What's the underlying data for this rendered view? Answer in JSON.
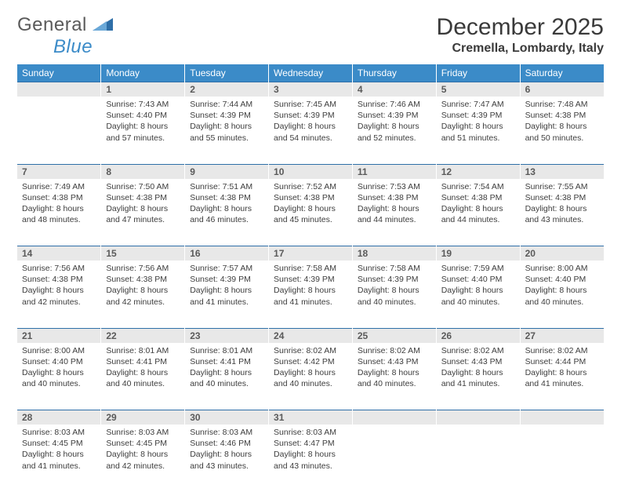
{
  "logo": {
    "word1": "General",
    "word2": "Blue"
  },
  "title": "December 2025",
  "location": "Cremella, Lombardy, Italy",
  "colors": {
    "header_bg": "#3b8bc8",
    "header_text": "#ffffff",
    "daynum_bg": "#e8e8e8",
    "daynum_border_top": "#2f6fa8",
    "body_text": "#3d3d3d",
    "logo_triangle": "#2f6fa8"
  },
  "typography": {
    "title_fontsize": 30,
    "location_fontsize": 16,
    "header_fontsize": 12,
    "daynum_fontsize": 12,
    "cell_fontsize": 10.5
  },
  "weekdays": [
    "Sunday",
    "Monday",
    "Tuesday",
    "Wednesday",
    "Thursday",
    "Friday",
    "Saturday"
  ],
  "weeks": [
    [
      null,
      {
        "n": "1",
        "sr": "Sunrise: 7:43 AM",
        "ss": "Sunset: 4:40 PM",
        "d1": "Daylight: 8 hours",
        "d2": "and 57 minutes."
      },
      {
        "n": "2",
        "sr": "Sunrise: 7:44 AM",
        "ss": "Sunset: 4:39 PM",
        "d1": "Daylight: 8 hours",
        "d2": "and 55 minutes."
      },
      {
        "n": "3",
        "sr": "Sunrise: 7:45 AM",
        "ss": "Sunset: 4:39 PM",
        "d1": "Daylight: 8 hours",
        "d2": "and 54 minutes."
      },
      {
        "n": "4",
        "sr": "Sunrise: 7:46 AM",
        "ss": "Sunset: 4:39 PM",
        "d1": "Daylight: 8 hours",
        "d2": "and 52 minutes."
      },
      {
        "n": "5",
        "sr": "Sunrise: 7:47 AM",
        "ss": "Sunset: 4:39 PM",
        "d1": "Daylight: 8 hours",
        "d2": "and 51 minutes."
      },
      {
        "n": "6",
        "sr": "Sunrise: 7:48 AM",
        "ss": "Sunset: 4:38 PM",
        "d1": "Daylight: 8 hours",
        "d2": "and 50 minutes."
      }
    ],
    [
      {
        "n": "7",
        "sr": "Sunrise: 7:49 AM",
        "ss": "Sunset: 4:38 PM",
        "d1": "Daylight: 8 hours",
        "d2": "and 48 minutes."
      },
      {
        "n": "8",
        "sr": "Sunrise: 7:50 AM",
        "ss": "Sunset: 4:38 PM",
        "d1": "Daylight: 8 hours",
        "d2": "and 47 minutes."
      },
      {
        "n": "9",
        "sr": "Sunrise: 7:51 AM",
        "ss": "Sunset: 4:38 PM",
        "d1": "Daylight: 8 hours",
        "d2": "and 46 minutes."
      },
      {
        "n": "10",
        "sr": "Sunrise: 7:52 AM",
        "ss": "Sunset: 4:38 PM",
        "d1": "Daylight: 8 hours",
        "d2": "and 45 minutes."
      },
      {
        "n": "11",
        "sr": "Sunrise: 7:53 AM",
        "ss": "Sunset: 4:38 PM",
        "d1": "Daylight: 8 hours",
        "d2": "and 44 minutes."
      },
      {
        "n": "12",
        "sr": "Sunrise: 7:54 AM",
        "ss": "Sunset: 4:38 PM",
        "d1": "Daylight: 8 hours",
        "d2": "and 44 minutes."
      },
      {
        "n": "13",
        "sr": "Sunrise: 7:55 AM",
        "ss": "Sunset: 4:38 PM",
        "d1": "Daylight: 8 hours",
        "d2": "and 43 minutes."
      }
    ],
    [
      {
        "n": "14",
        "sr": "Sunrise: 7:56 AM",
        "ss": "Sunset: 4:38 PM",
        "d1": "Daylight: 8 hours",
        "d2": "and 42 minutes."
      },
      {
        "n": "15",
        "sr": "Sunrise: 7:56 AM",
        "ss": "Sunset: 4:38 PM",
        "d1": "Daylight: 8 hours",
        "d2": "and 42 minutes."
      },
      {
        "n": "16",
        "sr": "Sunrise: 7:57 AM",
        "ss": "Sunset: 4:39 PM",
        "d1": "Daylight: 8 hours",
        "d2": "and 41 minutes."
      },
      {
        "n": "17",
        "sr": "Sunrise: 7:58 AM",
        "ss": "Sunset: 4:39 PM",
        "d1": "Daylight: 8 hours",
        "d2": "and 41 minutes."
      },
      {
        "n": "18",
        "sr": "Sunrise: 7:58 AM",
        "ss": "Sunset: 4:39 PM",
        "d1": "Daylight: 8 hours",
        "d2": "and 40 minutes."
      },
      {
        "n": "19",
        "sr": "Sunrise: 7:59 AM",
        "ss": "Sunset: 4:40 PM",
        "d1": "Daylight: 8 hours",
        "d2": "and 40 minutes."
      },
      {
        "n": "20",
        "sr": "Sunrise: 8:00 AM",
        "ss": "Sunset: 4:40 PM",
        "d1": "Daylight: 8 hours",
        "d2": "and 40 minutes."
      }
    ],
    [
      {
        "n": "21",
        "sr": "Sunrise: 8:00 AM",
        "ss": "Sunset: 4:40 PM",
        "d1": "Daylight: 8 hours",
        "d2": "and 40 minutes."
      },
      {
        "n": "22",
        "sr": "Sunrise: 8:01 AM",
        "ss": "Sunset: 4:41 PM",
        "d1": "Daylight: 8 hours",
        "d2": "and 40 minutes."
      },
      {
        "n": "23",
        "sr": "Sunrise: 8:01 AM",
        "ss": "Sunset: 4:41 PM",
        "d1": "Daylight: 8 hours",
        "d2": "and 40 minutes."
      },
      {
        "n": "24",
        "sr": "Sunrise: 8:02 AM",
        "ss": "Sunset: 4:42 PM",
        "d1": "Daylight: 8 hours",
        "d2": "and 40 minutes."
      },
      {
        "n": "25",
        "sr": "Sunrise: 8:02 AM",
        "ss": "Sunset: 4:43 PM",
        "d1": "Daylight: 8 hours",
        "d2": "and 40 minutes."
      },
      {
        "n": "26",
        "sr": "Sunrise: 8:02 AM",
        "ss": "Sunset: 4:43 PM",
        "d1": "Daylight: 8 hours",
        "d2": "and 41 minutes."
      },
      {
        "n": "27",
        "sr": "Sunrise: 8:02 AM",
        "ss": "Sunset: 4:44 PM",
        "d1": "Daylight: 8 hours",
        "d2": "and 41 minutes."
      }
    ],
    [
      {
        "n": "28",
        "sr": "Sunrise: 8:03 AM",
        "ss": "Sunset: 4:45 PM",
        "d1": "Daylight: 8 hours",
        "d2": "and 41 minutes."
      },
      {
        "n": "29",
        "sr": "Sunrise: 8:03 AM",
        "ss": "Sunset: 4:45 PM",
        "d1": "Daylight: 8 hours",
        "d2": "and 42 minutes."
      },
      {
        "n": "30",
        "sr": "Sunrise: 8:03 AM",
        "ss": "Sunset: 4:46 PM",
        "d1": "Daylight: 8 hours",
        "d2": "and 43 minutes."
      },
      {
        "n": "31",
        "sr": "Sunrise: 8:03 AM",
        "ss": "Sunset: 4:47 PM",
        "d1": "Daylight: 8 hours",
        "d2": "and 43 minutes."
      },
      null,
      null,
      null
    ]
  ]
}
